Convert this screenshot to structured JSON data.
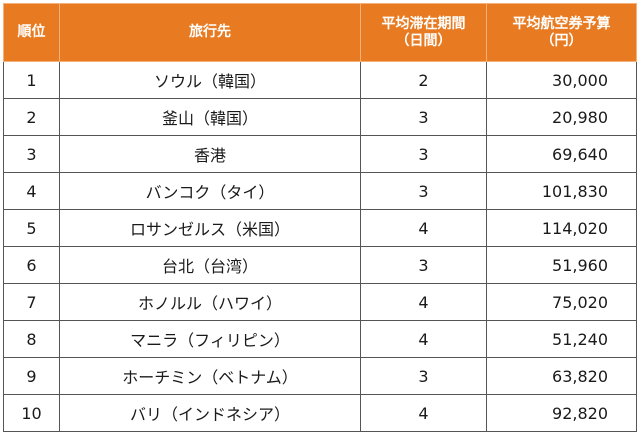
{
  "table": {
    "headers": {
      "rank": "順位",
      "destination": "旅行先",
      "days_line1": "平均滞在期間",
      "days_line2": "（日間）",
      "cost_line1": "平均航空券予算",
      "cost_line2": "（円）"
    },
    "rows": [
      {
        "rank": "1",
        "destination": "ソウル（韓国）",
        "days": "2",
        "cost": "30,000"
      },
      {
        "rank": "2",
        "destination": "釜山（韓国）",
        "days": "3",
        "cost": "20,980"
      },
      {
        "rank": "3",
        "destination": "香港",
        "days": "3",
        "cost": "69,640"
      },
      {
        "rank": "4",
        "destination": "バンコク（タイ）",
        "days": "3",
        "cost": "101,830"
      },
      {
        "rank": "5",
        "destination": "ロサンゼルス（米国）",
        "days": "4",
        "cost": "114,020"
      },
      {
        "rank": "6",
        "destination": "台北（台湾）",
        "days": "3",
        "cost": "51,960"
      },
      {
        "rank": "7",
        "destination": "ホノルル（ハワイ）",
        "days": "4",
        "cost": "75,020"
      },
      {
        "rank": "8",
        "destination": "マニラ（フィリピン）",
        "days": "4",
        "cost": "51,240"
      },
      {
        "rank": "9",
        "destination": "ホーチミン（ベトナム）",
        "days": "3",
        "cost": "63,820"
      },
      {
        "rank": "10",
        "destination": "バリ（インドネシア）",
        "days": "4",
        "cost": "92,820"
      }
    ]
  },
  "colors": {
    "header_bg": "#e87b22",
    "header_text": "#ffffff",
    "border": "#555555"
  }
}
